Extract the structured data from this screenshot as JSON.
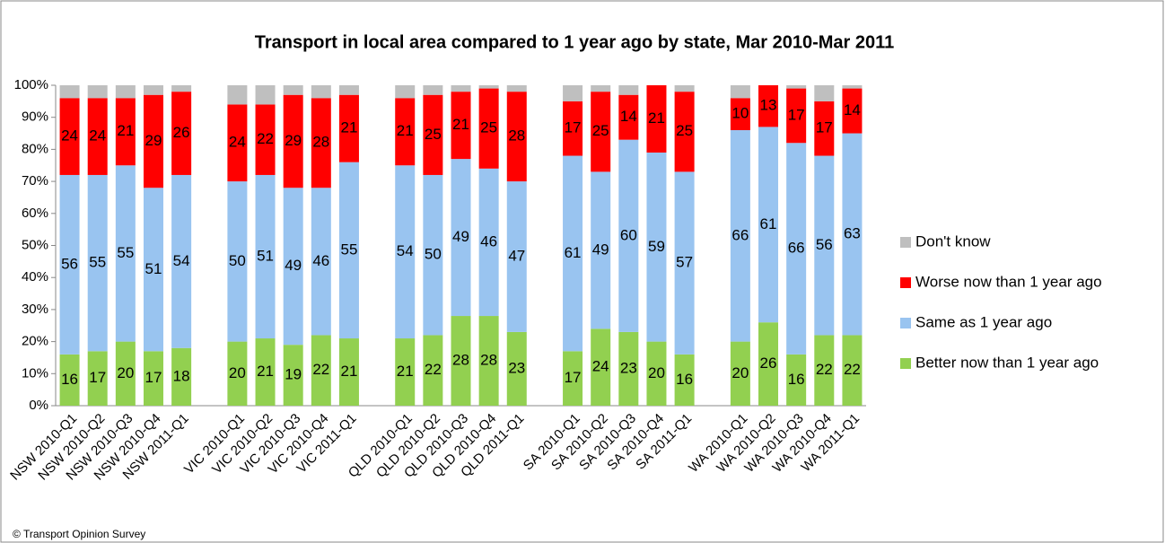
{
  "chart_data": {
    "type": "stacked_bar",
    "title": "Transport in local area compared to 1 year ago by state, Mar 2010-Mar 2011",
    "source": "© Transport Opinion Survey",
    "categories": [
      "NSW 2010-Q1",
      "NSW 2010-Q2",
      "NSW 2010-Q3",
      "NSW 2010-Q4",
      "NSW 2011-Q1",
      null,
      "VIC 2010-Q1",
      "VIC 2010-Q2",
      "VIC 2010-Q3",
      "VIC 2010-Q4",
      "VIC 2011-Q1",
      null,
      "QLD 2010-Q1",
      "QLD 2010-Q2",
      "QLD 2010-Q3",
      "QLD 2010-Q4",
      "QLD 2011-Q1",
      null,
      "SA 2010-Q1",
      "SA 2010-Q2",
      "SA 2010-Q3",
      "SA 2010-Q4",
      "SA 2011-Q1",
      null,
      "WA 2010-Q1",
      "WA 2010-Q2",
      "WA 2010-Q3",
      "WA 2010-Q4",
      "WA 2011-Q1"
    ],
    "series": [
      {
        "name": "Better now than 1 year ago",
        "color": "#92d050",
        "labels": true,
        "values": [
          16,
          17,
          20,
          17,
          18,
          null,
          20,
          21,
          19,
          22,
          21,
          null,
          21,
          22,
          28,
          28,
          23,
          null,
          17,
          24,
          23,
          20,
          16,
          null,
          20,
          26,
          16,
          22,
          22
        ]
      },
      {
        "name": "Same as 1 year ago",
        "color": "#99c4f0",
        "labels": true,
        "values": [
          56,
          55,
          55,
          51,
          54,
          null,
          50,
          51,
          49,
          46,
          55,
          null,
          54,
          50,
          49,
          46,
          47,
          null,
          61,
          49,
          60,
          59,
          57,
          null,
          66,
          61,
          66,
          56,
          63
        ]
      },
      {
        "name": "Worse now than 1 year ago",
        "color": "#ff0000",
        "labels": true,
        "values": [
          24,
          24,
          21,
          29,
          26,
          null,
          24,
          22,
          29,
          28,
          21,
          null,
          21,
          25,
          21,
          25,
          28,
          null,
          17,
          25,
          14,
          21,
          25,
          null,
          10,
          13,
          17,
          17,
          14
        ]
      },
      {
        "name": "Don't know",
        "color": "#bfbfbf",
        "labels": false,
        "values": [
          4,
          4,
          4,
          3,
          2,
          null,
          6,
          6,
          3,
          4,
          3,
          null,
          4,
          3,
          2,
          1,
          2,
          null,
          5,
          2,
          3,
          0,
          2,
          null,
          4,
          0,
          1,
          5,
          1
        ]
      }
    ],
    "ylim": [
      0,
      100
    ],
    "yticks": [
      {
        "value": 0,
        "label": "0%"
      },
      {
        "value": 10,
        "label": "10%"
      },
      {
        "value": 20,
        "label": "20%"
      },
      {
        "value": 30,
        "label": "30%"
      },
      {
        "value": 40,
        "label": "40%"
      },
      {
        "value": 50,
        "label": "50%"
      },
      {
        "value": 60,
        "label": "60%"
      },
      {
        "value": 70,
        "label": "70%"
      },
      {
        "value": 80,
        "label": "80%"
      },
      {
        "value": 90,
        "label": "90%"
      },
      {
        "value": 100,
        "label": "100%"
      }
    ],
    "legend": "right"
  }
}
